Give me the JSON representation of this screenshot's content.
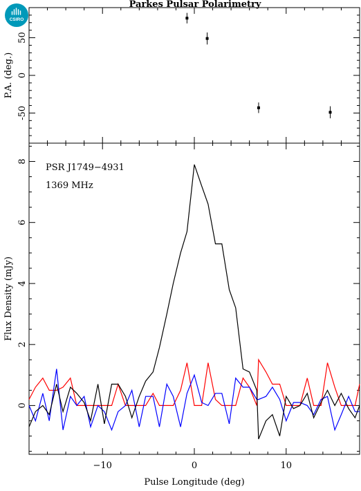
{
  "chart_data": [
    {
      "panel": "position-angle",
      "type": "scatter",
      "title": "Parkes Pulsar Polarimetry",
      "ylabel": "P.A. (deg.)",
      "xlim": [
        -18,
        18
      ],
      "ylim": [
        -90,
        90
      ],
      "yticks": [
        -50,
        0,
        50
      ],
      "points": [
        {
          "x": -0.8,
          "y": 76,
          "err": 7
        },
        {
          "x": 1.4,
          "y": 49,
          "err": 8
        },
        {
          "x": 7.0,
          "y": -43,
          "err": 7
        },
        {
          "x": 14.8,
          "y": -49,
          "err": 8
        }
      ],
      "marker_color": "#000000"
    },
    {
      "panel": "flux",
      "type": "line",
      "xlabel": "Pulse Longitude (deg)",
      "ylabel": "Flux Density (mJy)",
      "xlim": [
        -18,
        18
      ],
      "ylim": [
        -1.6,
        8.6
      ],
      "xticks": [
        -10,
        0,
        10
      ],
      "yticks": [
        0,
        2,
        4,
        6,
        8
      ],
      "annotations": [
        "PSR J1749−4931",
        "1369 MHz"
      ],
      "series": [
        {
          "color": "#000000",
          "points": [
            [
              -18.0,
              -0.7
            ],
            [
              -17.3,
              -0.2
            ],
            [
              -16.5,
              0.0
            ],
            [
              -15.8,
              -0.3
            ],
            [
              -15.0,
              0.7
            ],
            [
              -14.3,
              -0.2
            ],
            [
              -13.5,
              0.6
            ],
            [
              -12.8,
              0.4
            ],
            [
              -12.0,
              0.1
            ],
            [
              -11.3,
              -0.5
            ],
            [
              -10.5,
              0.7
            ],
            [
              -9.8,
              -0.6
            ],
            [
              -9.0,
              0.7
            ],
            [
              -8.3,
              0.7
            ],
            [
              -7.5,
              0.3
            ],
            [
              -6.8,
              -0.4
            ],
            [
              -6.0,
              0.3
            ],
            [
              -5.3,
              0.8
            ],
            [
              -4.5,
              1.1
            ],
            [
              -3.8,
              1.9
            ],
            [
              -3.0,
              3.0
            ],
            [
              -2.3,
              4.0
            ],
            [
              -1.5,
              5.0
            ],
            [
              -0.8,
              5.7
            ],
            [
              0.0,
              7.9
            ],
            [
              0.8,
              7.2
            ],
            [
              1.5,
              6.6
            ],
            [
              2.3,
              5.3
            ],
            [
              3.0,
              5.3
            ],
            [
              3.8,
              3.8
            ],
            [
              4.5,
              3.2
            ],
            [
              5.3,
              1.2
            ],
            [
              6.0,
              1.1
            ],
            [
              6.8,
              0.5
            ],
            [
              7.0,
              -1.1
            ],
            [
              7.8,
              -0.5
            ],
            [
              8.5,
              -0.3
            ],
            [
              9.3,
              -1.0
            ],
            [
              10.0,
              0.3
            ],
            [
              10.8,
              -0.1
            ],
            [
              11.5,
              0.0
            ],
            [
              12.3,
              0.4
            ],
            [
              13.0,
              -0.4
            ],
            [
              13.8,
              0.1
            ],
            [
              14.5,
              0.5
            ],
            [
              15.3,
              0.0
            ],
            [
              16.0,
              0.4
            ],
            [
              16.8,
              -0.1
            ],
            [
              17.5,
              -0.4
            ],
            [
              18.0,
              0.0
            ]
          ]
        },
        {
          "color": "#ff0000",
          "points": [
            [
              -18.0,
              0.2
            ],
            [
              -17.3,
              0.6
            ],
            [
              -16.5,
              0.9
            ],
            [
              -15.8,
              0.5
            ],
            [
              -15.0,
              0.5
            ],
            [
              -14.3,
              0.6
            ],
            [
              -13.5,
              0.9
            ],
            [
              -12.8,
              0.0
            ],
            [
              -12.0,
              0.0
            ],
            [
              -11.3,
              0.0
            ],
            [
              -10.5,
              0.0
            ],
            [
              -9.8,
              0.0
            ],
            [
              -9.0,
              0.0
            ],
            [
              -8.3,
              0.7
            ],
            [
              -7.5,
              0.0
            ],
            [
              -6.8,
              0.0
            ],
            [
              -6.0,
              0.0
            ],
            [
              -5.3,
              0.0
            ],
            [
              -4.5,
              0.4
            ],
            [
              -3.8,
              0.0
            ],
            [
              -3.0,
              0.0
            ],
            [
              -2.3,
              0.0
            ],
            [
              -1.5,
              0.5
            ],
            [
              -0.8,
              1.4
            ],
            [
              0.0,
              0.0
            ],
            [
              0.8,
              0.0
            ],
            [
              1.5,
              1.4
            ],
            [
              2.3,
              0.2
            ],
            [
              3.0,
              0.0
            ],
            [
              3.8,
              0.0
            ],
            [
              4.5,
              0.0
            ],
            [
              5.3,
              0.9
            ],
            [
              6.0,
              0.6
            ],
            [
              6.8,
              0.0
            ],
            [
              7.0,
              1.5
            ],
            [
              7.8,
              1.1
            ],
            [
              8.5,
              0.7
            ],
            [
              9.3,
              0.7
            ],
            [
              10.0,
              0.0
            ],
            [
              10.8,
              0.0
            ],
            [
              11.5,
              0.0
            ],
            [
              12.3,
              0.9
            ],
            [
              13.0,
              0.0
            ],
            [
              13.8,
              0.0
            ],
            [
              14.5,
              1.4
            ],
            [
              15.3,
              0.6
            ],
            [
              16.0,
              0.0
            ],
            [
              16.8,
              0.0
            ],
            [
              17.5,
              0.0
            ],
            [
              18.0,
              0.7
            ]
          ]
        },
        {
          "color": "#0000ff",
          "points": [
            [
              -18.0,
              0.0
            ],
            [
              -17.3,
              -0.5
            ],
            [
              -16.5,
              0.4
            ],
            [
              -15.8,
              -0.5
            ],
            [
              -15.0,
              1.2
            ],
            [
              -14.3,
              -0.8
            ],
            [
              -13.5,
              0.3
            ],
            [
              -12.8,
              0.0
            ],
            [
              -12.0,
              0.3
            ],
            [
              -11.3,
              -0.7
            ],
            [
              -10.5,
              0.0
            ],
            [
              -9.8,
              -0.2
            ],
            [
              -9.0,
              -0.8
            ],
            [
              -8.3,
              -0.2
            ],
            [
              -7.5,
              0.0
            ],
            [
              -6.8,
              0.5
            ],
            [
              -6.0,
              -0.7
            ],
            [
              -5.3,
              0.3
            ],
            [
              -4.5,
              0.3
            ],
            [
              -3.8,
              -0.7
            ],
            [
              -3.0,
              0.7
            ],
            [
              -2.3,
              0.3
            ],
            [
              -1.5,
              -0.7
            ],
            [
              -0.8,
              0.4
            ],
            [
              0.0,
              1.0
            ],
            [
              0.8,
              0.1
            ],
            [
              1.5,
              0.0
            ],
            [
              2.3,
              0.4
            ],
            [
              3.0,
              0.4
            ],
            [
              3.8,
              -0.6
            ],
            [
              4.5,
              0.9
            ],
            [
              5.3,
              0.6
            ],
            [
              6.0,
              0.6
            ],
            [
              6.8,
              0.2
            ],
            [
              7.0,
              0.2
            ],
            [
              7.8,
              0.3
            ],
            [
              8.5,
              0.6
            ],
            [
              9.3,
              0.2
            ],
            [
              10.0,
              -0.5
            ],
            [
              10.8,
              0.1
            ],
            [
              11.5,
              0.1
            ],
            [
              12.3,
              0.0
            ],
            [
              13.0,
              -0.3
            ],
            [
              13.8,
              0.2
            ],
            [
              14.5,
              0.3
            ],
            [
              15.3,
              -0.8
            ],
            [
              16.0,
              -0.3
            ],
            [
              16.8,
              0.3
            ],
            [
              17.5,
              -0.2
            ],
            [
              18.0,
              -0.2
            ]
          ]
        }
      ]
    }
  ],
  "logo": {
    "text": "CSIRO",
    "color": "#0099b9"
  }
}
